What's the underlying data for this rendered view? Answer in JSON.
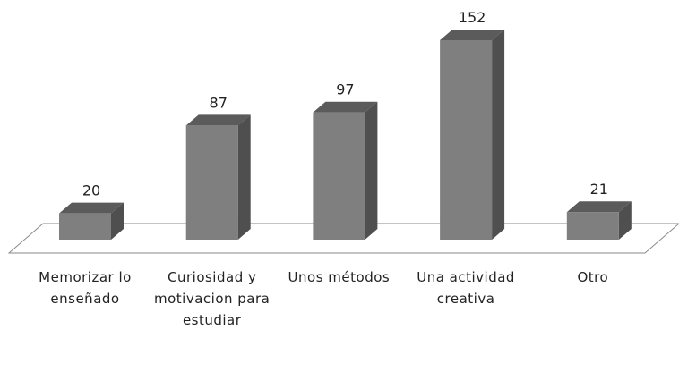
{
  "chart_data": {
    "type": "bar3d",
    "categories": [
      "Memorizar lo enseñado",
      "Curiosidad y motivacion para estudiar",
      "Unos métodos",
      "Una actividad creativa",
      "Otro"
    ],
    "values": [
      20,
      87,
      97,
      152,
      21
    ],
    "color": "#7f7f7f"
  }
}
